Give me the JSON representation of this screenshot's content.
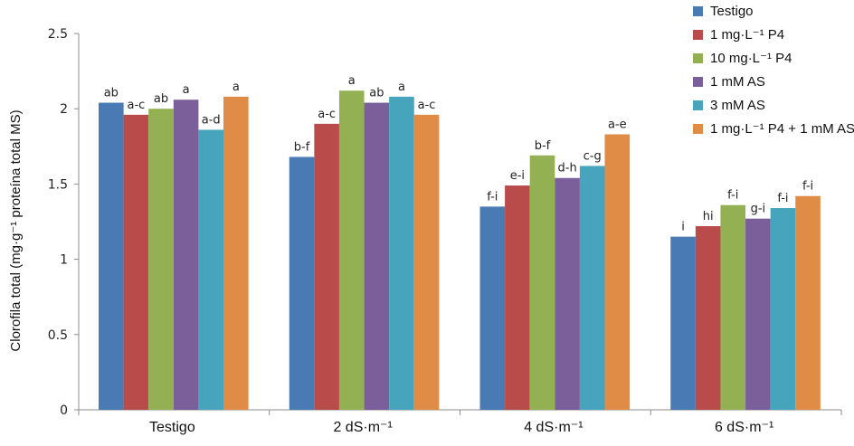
{
  "chart_data": {
    "type": "bar",
    "ylabel": "Clorofila total (mg·g⁻¹ proteína total MS)",
    "ylim": [
      0,
      2.5
    ],
    "yticks": [
      0,
      0.5,
      1,
      1.5,
      2,
      2.5
    ],
    "ytick_labels": [
      "0",
      "0.5",
      "1",
      "1.5",
      "2",
      "2.5"
    ],
    "categories": [
      "Testigo",
      "2 dS·m⁻¹",
      "4 dS·m⁻¹",
      "6 dS·m⁻¹"
    ],
    "legend_position": "top-right",
    "grid": false,
    "series": [
      {
        "name": "Testigo",
        "color": "#4a7ab4",
        "values": [
          2.04,
          1.68,
          1.35,
          1.15
        ],
        "labels": [
          "ab",
          "b-f",
          "f-i",
          "i"
        ]
      },
      {
        "name": "1 mg·L⁻¹ P4",
        "color": "#b94b4a",
        "values": [
          1.96,
          1.9,
          1.49,
          1.22
        ],
        "labels": [
          "a-c",
          "a-c",
          "e-i",
          "hi"
        ]
      },
      {
        "name": "10 mg·L⁻¹ P4",
        "color": "#93b153",
        "values": [
          2.0,
          2.12,
          1.69,
          1.36
        ],
        "labels": [
          "ab",
          "a",
          "b-f",
          "f-i"
        ]
      },
      {
        "name": "1 mM AS",
        "color": "#7b5f9b",
        "values": [
          2.06,
          2.04,
          1.54,
          1.27
        ],
        "labels": [
          "a",
          "ab",
          "d-h",
          "g-i"
        ]
      },
      {
        "name": "3 mM AS",
        "color": "#47a4bd",
        "values": [
          1.86,
          2.08,
          1.62,
          1.34
        ],
        "labels": [
          "a-d",
          "a",
          "c-g",
          "f-i"
        ]
      },
      {
        "name": "1 mg·L⁻¹ P4 + 1 mM AS",
        "color": "#e08c47",
        "values": [
          2.08,
          1.96,
          1.83,
          1.42
        ],
        "labels": [
          "a",
          "a-c",
          "a-e",
          "f-i"
        ]
      }
    ]
  }
}
